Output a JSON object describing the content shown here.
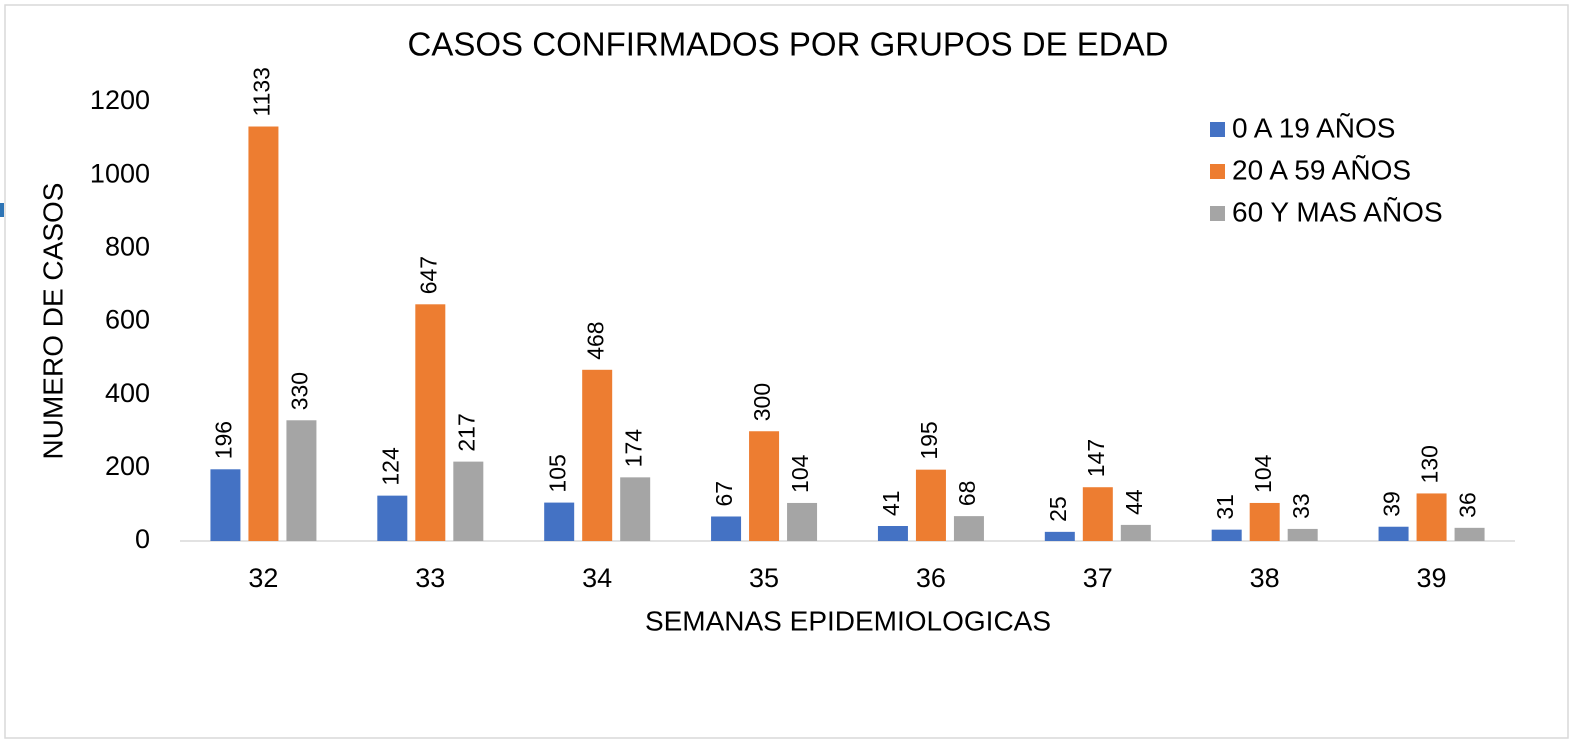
{
  "chart_data": {
    "type": "bar",
    "title": "CASOS CONFIRMADOS POR GRUPOS DE EDAD",
    "x_label": "SEMANAS EPIDEMIOLOGICAS",
    "y_label": "NUMERO DE CASOS",
    "categories": [
      "32",
      "33",
      "34",
      "35",
      "36",
      "37",
      "38",
      "39"
    ],
    "series": [
      {
        "name": "0 A 19 AÑOS",
        "color": "#4472c4",
        "values": [
          196,
          124,
          105,
          67,
          41,
          25,
          31,
          39
        ]
      },
      {
        "name": "20 A 59 AÑOS",
        "color": "#ed7d31",
        "values": [
          1133,
          647,
          468,
          300,
          195,
          147,
          104,
          130
        ]
      },
      {
        "name": "60 Y MAS AÑOS",
        "color": "#a5a5a5",
        "values": [
          330,
          217,
          174,
          104,
          68,
          44,
          33,
          36
        ]
      }
    ],
    "ylim": [
      0,
      1200
    ],
    "yticks": [
      0,
      200,
      400,
      600,
      800,
      1000,
      1200
    ],
    "grid": false,
    "legend": "top-right"
  }
}
